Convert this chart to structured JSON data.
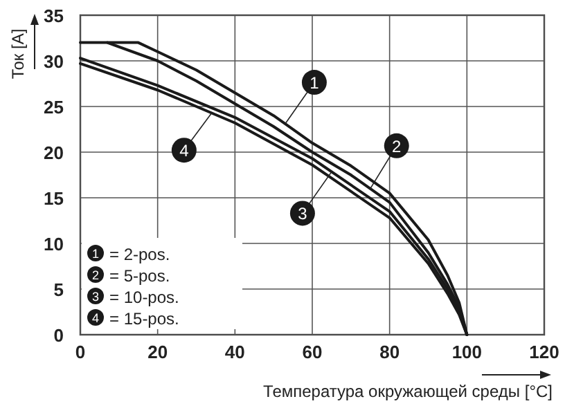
{
  "chart_data": {
    "type": "line",
    "xlabel": "Температура окружающей среды [°C]",
    "ylabel": "Ток [A]",
    "xlim": [
      0,
      120
    ],
    "ylim": [
      0,
      35
    ],
    "xticks": [
      0,
      20,
      40,
      60,
      80,
      100,
      120
    ],
    "yticks": [
      0,
      5,
      10,
      15,
      20,
      25,
      30,
      35
    ],
    "grid": true,
    "legend": "bottom left",
    "marker": "none",
    "line_style": "solid",
    "series": [
      {
        "name": "= 2-pos.",
        "color": "#1a1a1a",
        "x": [
          7,
          15,
          20,
          30,
          40,
          50,
          60,
          70,
          80,
          90,
          95,
          98,
          100
        ],
        "values": [
          32,
          32,
          31,
          29,
          26.5,
          24,
          21,
          18.5,
          15.5,
          10.4,
          6.5,
          3.5,
          0
        ]
      },
      {
        "name": "= 5-pos.",
        "color": "#1a1a1a",
        "x": [
          0,
          7,
          20,
          30,
          40,
          50,
          60,
          70,
          80,
          90,
          95,
          98,
          100
        ],
        "values": [
          32,
          32,
          30,
          27.8,
          25.3,
          22.8,
          20,
          17.5,
          14.5,
          9,
          5.5,
          3,
          0
        ]
      },
      {
        "name": "= 10-pos.",
        "color": "#1a1a1a",
        "x": [
          0,
          20,
          40,
          60,
          80,
          90,
          95,
          98,
          100
        ],
        "values": [
          30.3,
          27.3,
          23.8,
          19.3,
          13.5,
          8.3,
          5,
          2.5,
          0
        ]
      },
      {
        "name": "= 15-pos.",
        "color": "#1a1a1a",
        "x": [
          0,
          20,
          40,
          60,
          80,
          90,
          95,
          98,
          100
        ],
        "values": [
          29.7,
          26.8,
          23.2,
          18.6,
          12.8,
          7.8,
          4.5,
          2.2,
          0
        ]
      }
    ],
    "annotations": [
      {
        "text": "1",
        "x": 53,
        "y": 23.1
      },
      {
        "text": "2",
        "x": 75,
        "y": 16
      },
      {
        "text": "3",
        "x": 65,
        "y": 17.85
      },
      {
        "text": "4",
        "x": 34,
        "y": 24.3
      }
    ]
  }
}
